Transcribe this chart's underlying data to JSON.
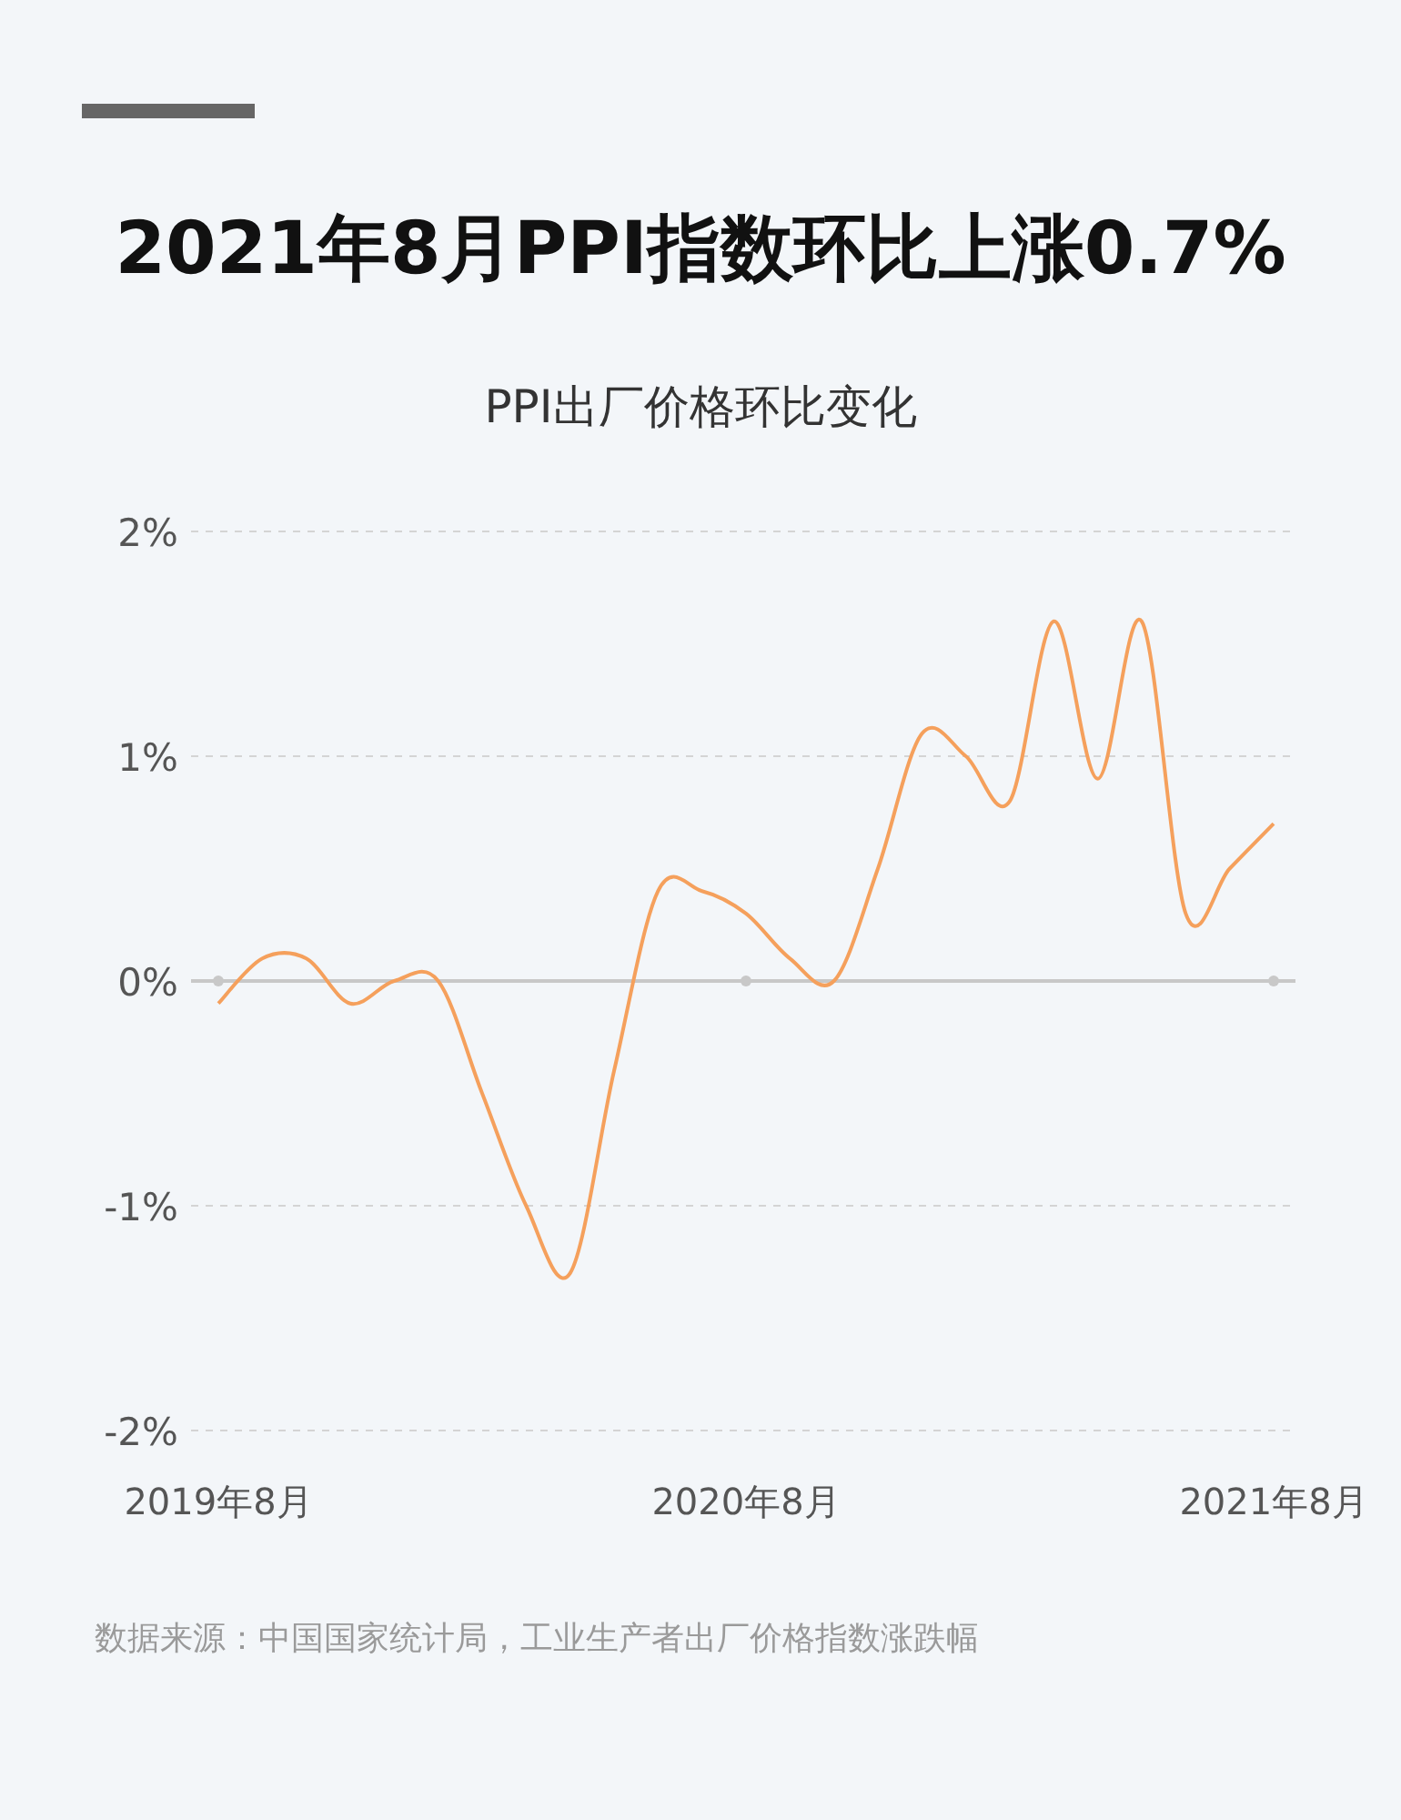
{
  "chart_data": {
    "type": "line",
    "title": "2021年8月PPI指数环比上涨0.7%",
    "subtitle": "PPI出厂价格环比变化",
    "categories": [
      "2019年8月",
      null,
      null,
      null,
      null,
      null,
      null,
      null,
      null,
      null,
      null,
      null,
      "2020年8月",
      null,
      null,
      null,
      null,
      null,
      null,
      null,
      null,
      null,
      null,
      null,
      "2021年8月"
    ],
    "series": [
      {
        "color": "#f5a05c",
        "values": [
          -0.1,
          0.1,
          0.1,
          -0.1,
          0.0,
          0.0,
          -0.5,
          -1.0,
          -1.3,
          -0.4,
          0.4,
          0.4,
          0.3,
          0.1,
          0.0,
          0.5,
          1.1,
          1.0,
          0.8,
          1.6,
          0.9,
          1.6,
          0.3,
          0.5,
          0.7
        ]
      }
    ],
    "ylim": [
      -2,
      2
    ],
    "yticks": [
      {
        "value": -2,
        "label": "-2%"
      },
      {
        "value": -1,
        "label": "-1%"
      },
      {
        "value": 0,
        "label": "0%"
      },
      {
        "value": 1,
        "label": "1%"
      },
      {
        "value": 2,
        "label": "2%"
      }
    ],
    "grid": "y",
    "annotations": [
      "数据来源：中国国家统计局，工业生产者出厂价格指数涨跌幅"
    ]
  }
}
